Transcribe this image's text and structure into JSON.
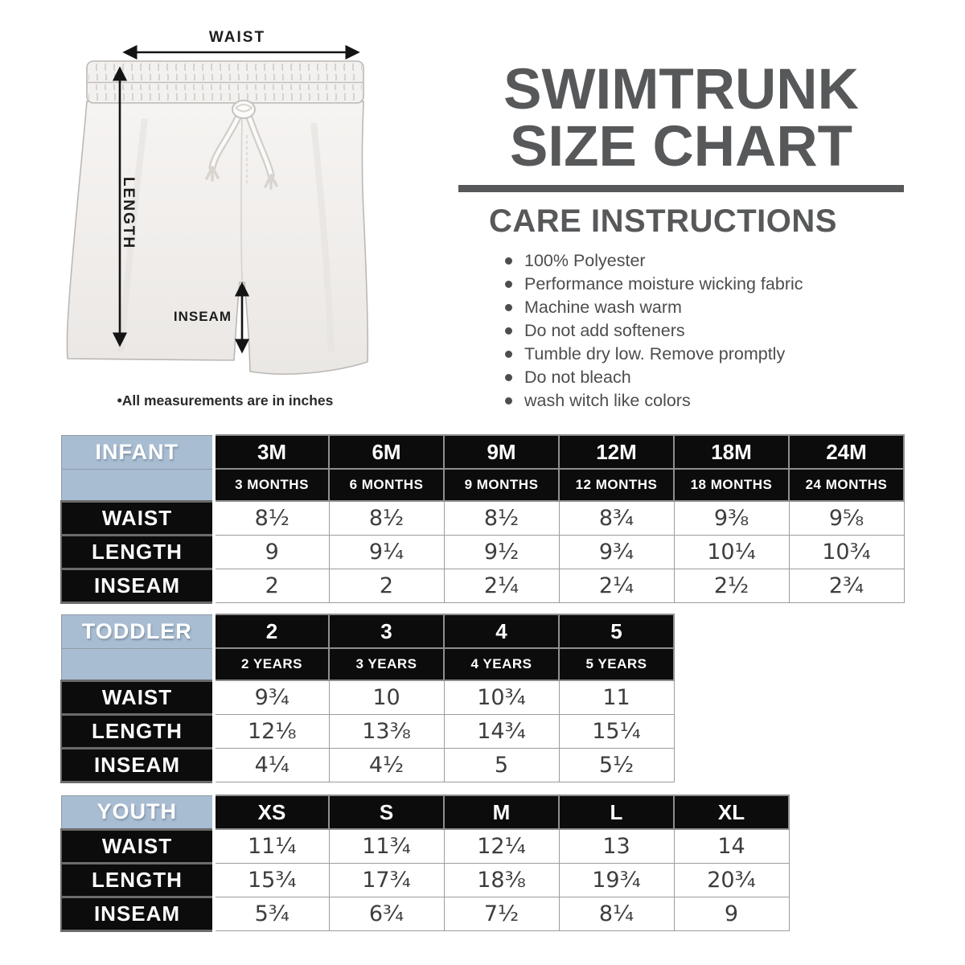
{
  "colors": {
    "title_gray": "#57585a",
    "care_text_gray": "#4c4d4f",
    "header_blue": "#a9bdd2",
    "cell_black": "#0c0c0c",
    "value_text": "#3d3d3e",
    "grid_gray": "#9c9c9c"
  },
  "diagram": {
    "waist_label": "WAIST",
    "length_label": "LENGTH",
    "inseam_label": "INSEAM",
    "note": "•All measurements are in inches"
  },
  "header": {
    "title_line1": "SWIMTRUNK",
    "title_line2": "SIZE CHART"
  },
  "care": {
    "heading": "CARE INSTRUCTIONS",
    "items": [
      "100% Polyester",
      "Performance moisture wicking fabric",
      "Machine wash warm",
      "Do not add softeners",
      "Tumble dry low. Remove promptly",
      "Do not bleach",
      "wash witch like colors"
    ]
  },
  "tables": [
    {
      "group": "INFANT",
      "sizes": [
        "3M",
        "6M",
        "9M",
        "12M",
        "18M",
        "24M"
      ],
      "size_sublabels": [
        "3 MONTHS",
        "6 MONTHS",
        "9 MONTHS",
        "12 MONTHS",
        "18 MONTHS",
        "24 MONTHS"
      ],
      "rows": [
        {
          "label": "WAIST",
          "values": [
            "8½",
            "8½",
            "8½",
            "8¾",
            "9⅜",
            "9⅝"
          ]
        },
        {
          "label": "LENGTH",
          "values": [
            "9",
            "9¼",
            "9½",
            "9¾",
            "10¼",
            "10¾"
          ]
        },
        {
          "label": "INSEAM",
          "values": [
            "2",
            "2",
            "2¼",
            "2¼",
            "2½",
            "2¾"
          ]
        }
      ]
    },
    {
      "group": "TODDLER",
      "sizes": [
        "2",
        "3",
        "4",
        "5"
      ],
      "size_sublabels": [
        "2 YEARS",
        "3 YEARS",
        "4 YEARS",
        "5 YEARS"
      ],
      "rows": [
        {
          "label": "WAIST",
          "values": [
            "9¾",
            "10",
            "10¾",
            "11"
          ]
        },
        {
          "label": "LENGTH",
          "values": [
            "12⅛",
            "13⅜",
            "14¾",
            "15¼"
          ]
        },
        {
          "label": "INSEAM",
          "values": [
            "4¼",
            "4½",
            "5",
            "5½"
          ]
        }
      ]
    },
    {
      "group": "YOUTH",
      "sizes": [
        "XS",
        "S",
        "M",
        "L",
        "XL"
      ],
      "size_sublabels": null,
      "rows": [
        {
          "label": "WAIST",
          "values": [
            "11¼",
            "11¾",
            "12¼",
            "13",
            "14"
          ]
        },
        {
          "label": "LENGTH",
          "values": [
            "15¾",
            "17¾",
            "18⅜",
            "19¾",
            "20¾"
          ]
        },
        {
          "label": "INSEAM",
          "values": [
            "5¾",
            "6¾",
            "7½",
            "8¼",
            "9"
          ]
        }
      ]
    }
  ]
}
